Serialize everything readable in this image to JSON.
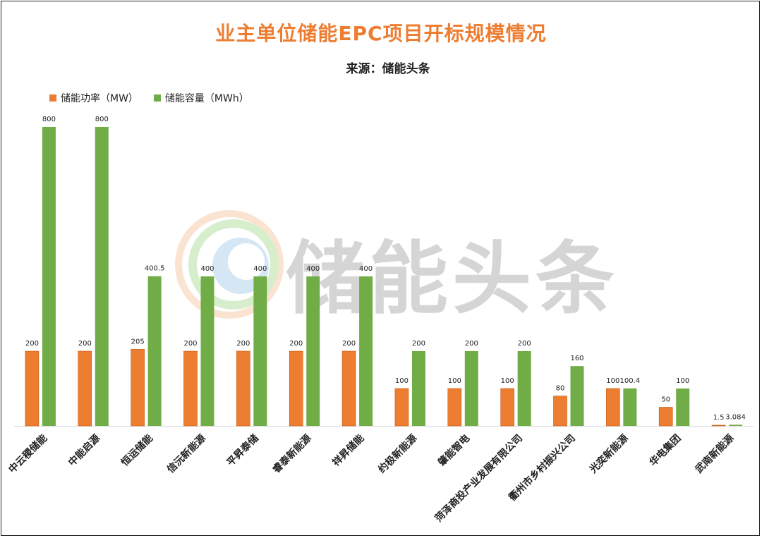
{
  "title": "业主单位储能EPC项目开标规模情况",
  "subtitle": "来源：储能头条",
  "watermark": "储能头条",
  "colors": {
    "title": "#ED7D31",
    "power": "#ED7D31",
    "capacity": "#70AD47",
    "axis": "#d9d9d9",
    "label": "#222222"
  },
  "chart_data": {
    "type": "bar",
    "categories": [
      "中云稷储能",
      "中能启源",
      "恒运储能",
      "信沅新能源",
      "平昇泰储",
      "睿泰新能源",
      "祥昇储能",
      "约极新能源",
      "肇能智电",
      "菏泽商投产业发展有限公司",
      "衢州市乡村振兴公司",
      "光奕新能源",
      "华电集团",
      "武南新能源"
    ],
    "series": [
      {
        "name": "储能功率（MW）",
        "values": [
          200,
          200,
          205,
          200,
          200,
          200,
          200,
          100,
          100,
          100,
          80,
          100,
          50,
          1.5
        ],
        "labels": [
          "200",
          "200",
          "205",
          "200",
          "200",
          "200",
          "200",
          "100",
          "100",
          "100",
          "80",
          "100",
          "50",
          "1.5"
        ]
      },
      {
        "name": "储能容量（MWh）",
        "values": [
          800,
          800,
          400.5,
          400,
          400,
          400,
          400,
          200,
          200,
          200,
          160,
          100.4,
          100,
          3.084
        ],
        "labels": [
          "800",
          "800",
          "400.5",
          "400",
          "400",
          "400",
          "400",
          "200",
          "200",
          "200",
          "160",
          "100.4",
          "100",
          "3.084"
        ]
      }
    ],
    "ylim": [
      0,
      800
    ],
    "grid": false,
    "legend": "top-left"
  }
}
